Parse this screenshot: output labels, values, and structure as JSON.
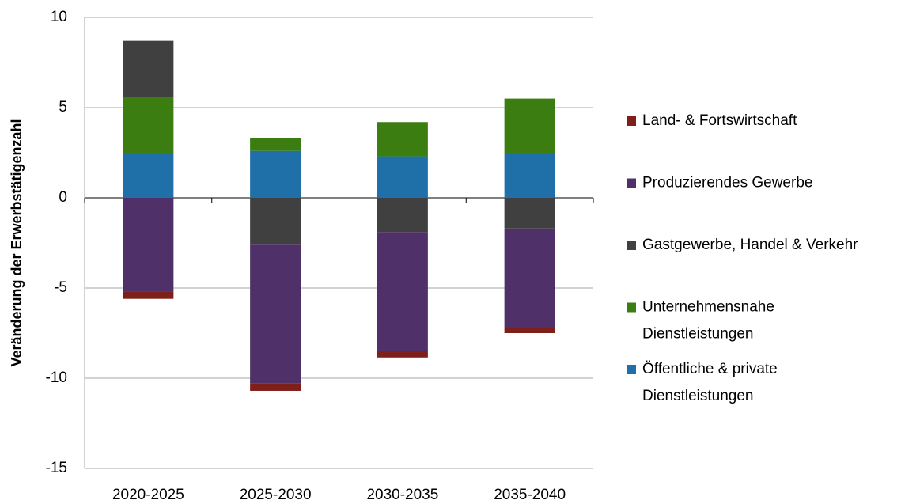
{
  "chart_data": {
    "type": "stacked_bar",
    "y_label": "Veränderung der Erwerbstätigenzahl",
    "categories": [
      "2020-2025",
      "2025-2030",
      "2030-2035",
      "2035-2040"
    ],
    "series": [
      {
        "name": "Land- & Fortswirtschaft",
        "color": "#7f1f1a",
        "values": [
          -0.4,
          -0.4,
          -0.35,
          -0.3
        ]
      },
      {
        "name": "Produzierendes Gewerbe",
        "color": "#4f3068",
        "values": [
          -5.2,
          -7.7,
          -6.6,
          -5.5
        ]
      },
      {
        "name": "Gastgewerbe, Handel & Verkehr",
        "color": "#404040",
        "values": [
          3.1,
          -2.6,
          -1.9,
          -1.7
        ]
      },
      {
        "name": "Unternehmensnahe Dienstleistungen",
        "color": "#3c7d12",
        "values": [
          3.1,
          0.7,
          1.9,
          3.0
        ]
      },
      {
        "name": "Öffentliche & private Dienstleistungen",
        "color": "#1f6fa8",
        "values": [
          2.5,
          2.6,
          2.3,
          2.5
        ]
      }
    ],
    "ylim": [
      -15,
      10
    ],
    "yticks": [
      -15,
      -10,
      -5,
      0,
      5,
      10
    ],
    "grid": true,
    "legend": "right"
  }
}
